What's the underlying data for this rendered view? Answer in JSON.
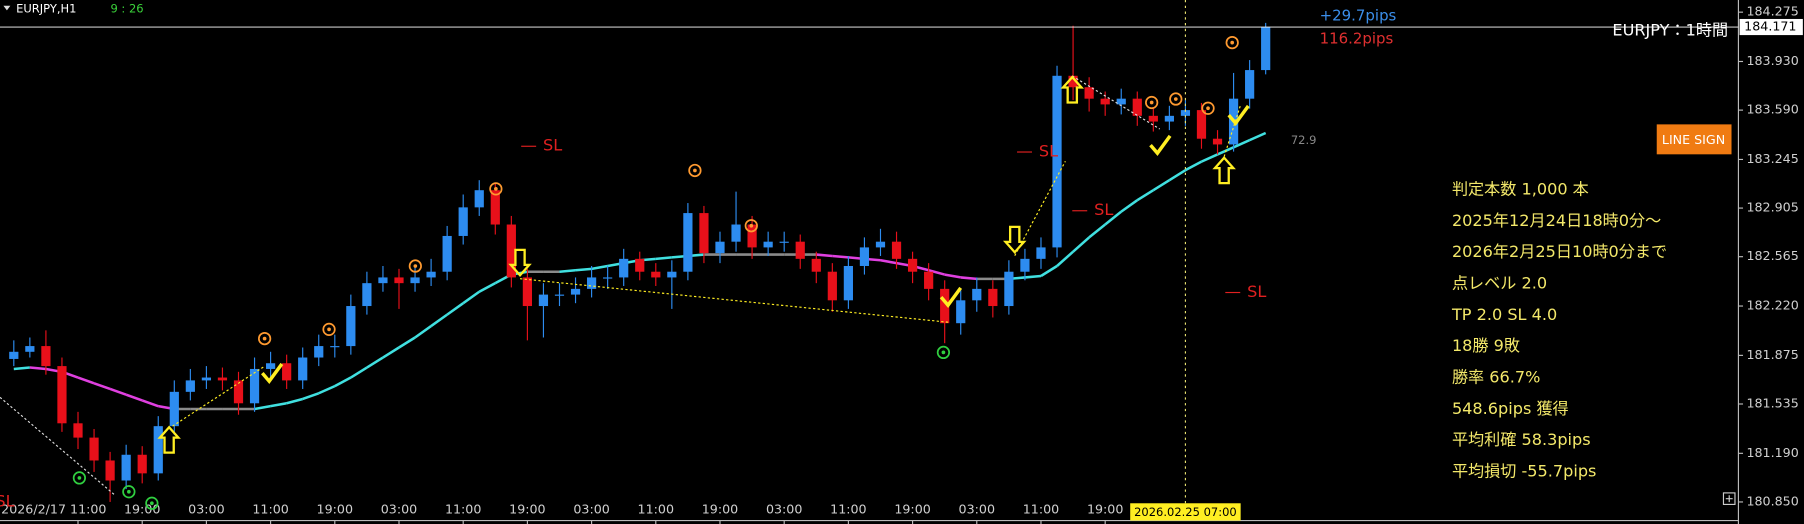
{
  "header": {
    "symbol": "EURJPY,H1",
    "clock": "9 : 26"
  },
  "chart_data": {
    "type": "candlestick",
    "title": "EURJPY：1時間",
    "open": [
      181.85,
      181.9,
      181.94,
      181.8,
      181.4,
      181.3,
      181.14,
      181.0,
      181.18,
      181.05,
      181.38,
      181.62,
      181.7,
      181.72,
      181.7,
      181.54,
      181.78,
      181.82,
      181.7,
      181.86,
      181.94,
      181.94,
      182.22,
      182.38,
      182.42,
      182.38,
      182.42,
      182.46,
      182.71,
      182.91,
      183.03,
      182.79,
      182.42,
      182.22,
      182.3,
      182.3,
      182.34,
      182.42,
      182.42,
      182.55,
      182.46,
      182.42,
      182.46,
      182.87,
      182.59,
      182.67,
      182.79,
      182.63,
      182.67,
      182.67,
      182.55,
      182.46,
      182.26,
      182.5,
      182.63,
      182.67,
      182.55,
      182.46,
      182.34,
      182.1,
      182.26,
      182.34,
      182.22,
      182.46,
      182.55,
      182.63,
      183.83,
      183.75,
      183.67,
      183.63,
      183.67,
      183.55,
      183.51,
      183.55,
      183.59,
      183.39,
      183.35,
      183.67,
      183.87
    ],
    "high": [
      181.98,
      182.0,
      182.05,
      181.86,
      181.48,
      181.36,
      181.2,
      181.25,
      181.24,
      181.45,
      181.7,
      181.78,
      181.8,
      181.79,
      181.76,
      181.86,
      181.9,
      181.88,
      181.93,
      182.02,
      182.02,
      182.3,
      182.46,
      182.5,
      182.48,
      182.5,
      182.55,
      182.78,
      183.0,
      183.1,
      183.08,
      182.85,
      182.48,
      182.38,
      182.38,
      182.42,
      182.5,
      182.5,
      182.62,
      182.6,
      182.52,
      182.54,
      182.94,
      182.92,
      182.74,
      183.02,
      182.85,
      182.74,
      182.74,
      182.72,
      182.6,
      182.52,
      182.57,
      182.7,
      182.76,
      182.74,
      182.6,
      182.52,
      182.4,
      182.33,
      182.42,
      182.4,
      182.54,
      182.62,
      182.7,
      183.9,
      184.18,
      183.82,
      183.72,
      183.74,
      183.72,
      183.6,
      183.62,
      183.66,
      183.64,
      183.45,
      183.85,
      183.94,
      184.2
    ],
    "low": [
      181.8,
      181.86,
      181.74,
      181.34,
      181.22,
      181.06,
      180.85,
      180.94,
      180.98,
      181.0,
      181.32,
      181.56,
      181.64,
      181.63,
      181.46,
      181.48,
      181.72,
      181.64,
      181.64,
      181.8,
      181.86,
      181.88,
      182.16,
      182.32,
      182.2,
      182.32,
      182.36,
      182.4,
      182.65,
      182.85,
      182.72,
      182.35,
      181.98,
      182.0,
      182.22,
      182.24,
      182.28,
      182.34,
      182.36,
      182.4,
      182.36,
      182.2,
      182.4,
      182.52,
      182.52,
      182.6,
      182.55,
      182.57,
      182.6,
      182.48,
      182.38,
      182.18,
      182.2,
      182.44,
      182.57,
      182.48,
      182.38,
      182.26,
      181.96,
      182.02,
      182.18,
      182.14,
      182.16,
      182.4,
      182.48,
      182.56,
      183.66,
      183.58,
      183.55,
      183.56,
      183.48,
      183.44,
      183.45,
      183.48,
      183.32,
      183.28,
      183.3,
      183.6,
      183.84
    ],
    "close": [
      181.9,
      181.94,
      181.8,
      181.4,
      181.3,
      181.14,
      181.0,
      181.18,
      181.05,
      181.38,
      181.62,
      181.7,
      181.72,
      181.7,
      181.54,
      181.78,
      181.82,
      181.7,
      181.86,
      181.94,
      181.94,
      182.22,
      182.38,
      182.42,
      182.38,
      182.42,
      182.46,
      182.71,
      182.91,
      183.03,
      182.79,
      182.42,
      182.22,
      182.3,
      182.3,
      182.34,
      182.42,
      182.42,
      182.55,
      182.46,
      182.42,
      182.46,
      182.87,
      182.59,
      182.67,
      182.79,
      182.63,
      182.67,
      182.67,
      182.55,
      182.46,
      182.26,
      182.5,
      182.63,
      182.67,
      182.55,
      182.46,
      182.34,
      182.1,
      182.26,
      182.34,
      182.22,
      182.46,
      182.55,
      182.63,
      183.83,
      183.75,
      183.67,
      183.63,
      183.67,
      183.55,
      183.51,
      183.55,
      183.59,
      183.39,
      183.35,
      183.67,
      183.87,
      184.17
    ],
    "ma": [
      181.78,
      181.79,
      181.78,
      181.76,
      181.72,
      181.68,
      181.64,
      181.6,
      181.56,
      181.52,
      181.5,
      181.5,
      181.5,
      181.5,
      181.5,
      181.5,
      181.52,
      181.54,
      181.57,
      181.61,
      181.66,
      181.72,
      181.79,
      181.86,
      181.93,
      182.0,
      182.08,
      182.16,
      182.24,
      182.32,
      182.38,
      182.44,
      182.46,
      182.46,
      182.46,
      182.47,
      182.48,
      182.5,
      182.52,
      182.54,
      182.55,
      182.56,
      182.57,
      182.58,
      182.58,
      182.58,
      182.58,
      182.58,
      182.58,
      182.58,
      182.58,
      182.57,
      182.56,
      182.55,
      182.54,
      182.52,
      182.5,
      182.47,
      182.44,
      182.42,
      182.41,
      182.41,
      182.41,
      182.42,
      182.43,
      182.5,
      182.6,
      182.7,
      182.79,
      182.88,
      182.96,
      183.03,
      183.1,
      183.17,
      183.23,
      183.28,
      183.33,
      183.38,
      183.43
    ],
    "up_color": "#2d8cf0",
    "down_color": "#e8101a",
    "ma_up_color": "#40e0e0",
    "ma_down_color": "#e040e0",
    "ma_flat_color": "#8a8a8a",
    "ylim": [
      180.72,
      184.36
    ],
    "yticks": [
      184.275,
      {
        "value": 183.93,
        "label": "183.930"
      },
      {
        "value": 183.59,
        "label": "183.590"
      },
      183.245,
      182.905,
      182.565,
      {
        "value": 182.22,
        "label": "182.220"
      },
      181.875,
      181.535,
      {
        "value": 181.19,
        "label": "181.190"
      },
      {
        "value": 180.85,
        "label": "180.850"
      }
    ],
    "current_price": 184.171,
    "xticks": [
      {
        "value": 4,
        "label": "2026/2/17 11:00"
      },
      {
        "value": 8,
        "label": "19:00"
      },
      {
        "value": 12,
        "label": "03:00"
      },
      {
        "value": 16,
        "label": "11:00"
      },
      {
        "value": 20,
        "label": "19:00"
      },
      {
        "value": 24,
        "label": "03:00"
      },
      {
        "value": 28,
        "label": "11:00"
      },
      {
        "value": 32,
        "label": "19:00"
      },
      {
        "value": 36,
        "label": "03:00"
      },
      {
        "value": 40,
        "label": "11:00"
      },
      {
        "value": 44,
        "label": "19:00"
      },
      {
        "value": 48,
        "label": "03:00"
      },
      {
        "value": 52,
        "label": "11:00"
      },
      {
        "value": 56,
        "label": "19:00"
      },
      {
        "value": 60,
        "label": "03:00"
      },
      {
        "value": 64,
        "label": "11:00"
      },
      {
        "value": 68,
        "label": "19:00"
      }
    ],
    "cursor": {
      "value": 73,
      "label": "2026.02.25 07:00"
    }
  },
  "profit": {
    "current": "+29.7pips",
    "total": "116.2pips"
  },
  "indicator_value": 72.9,
  "sl_labels": [
    "SL",
    "SL",
    "SL",
    "SL",
    "SL"
  ],
  "button": "LINE SIGN",
  "stats": [
    "判定本数 1,000 本",
    "2025年12月24日18時0分～",
    "2026年2月25日10時0分まで",
    "点レベル 2.0",
    "TP 2.0 SL 4.0",
    "18勝 9敗",
    "勝率 66.7%",
    "548.6pips 獲得",
    "平均利確 58.3pips",
    "平均損切 -55.7pips"
  ]
}
